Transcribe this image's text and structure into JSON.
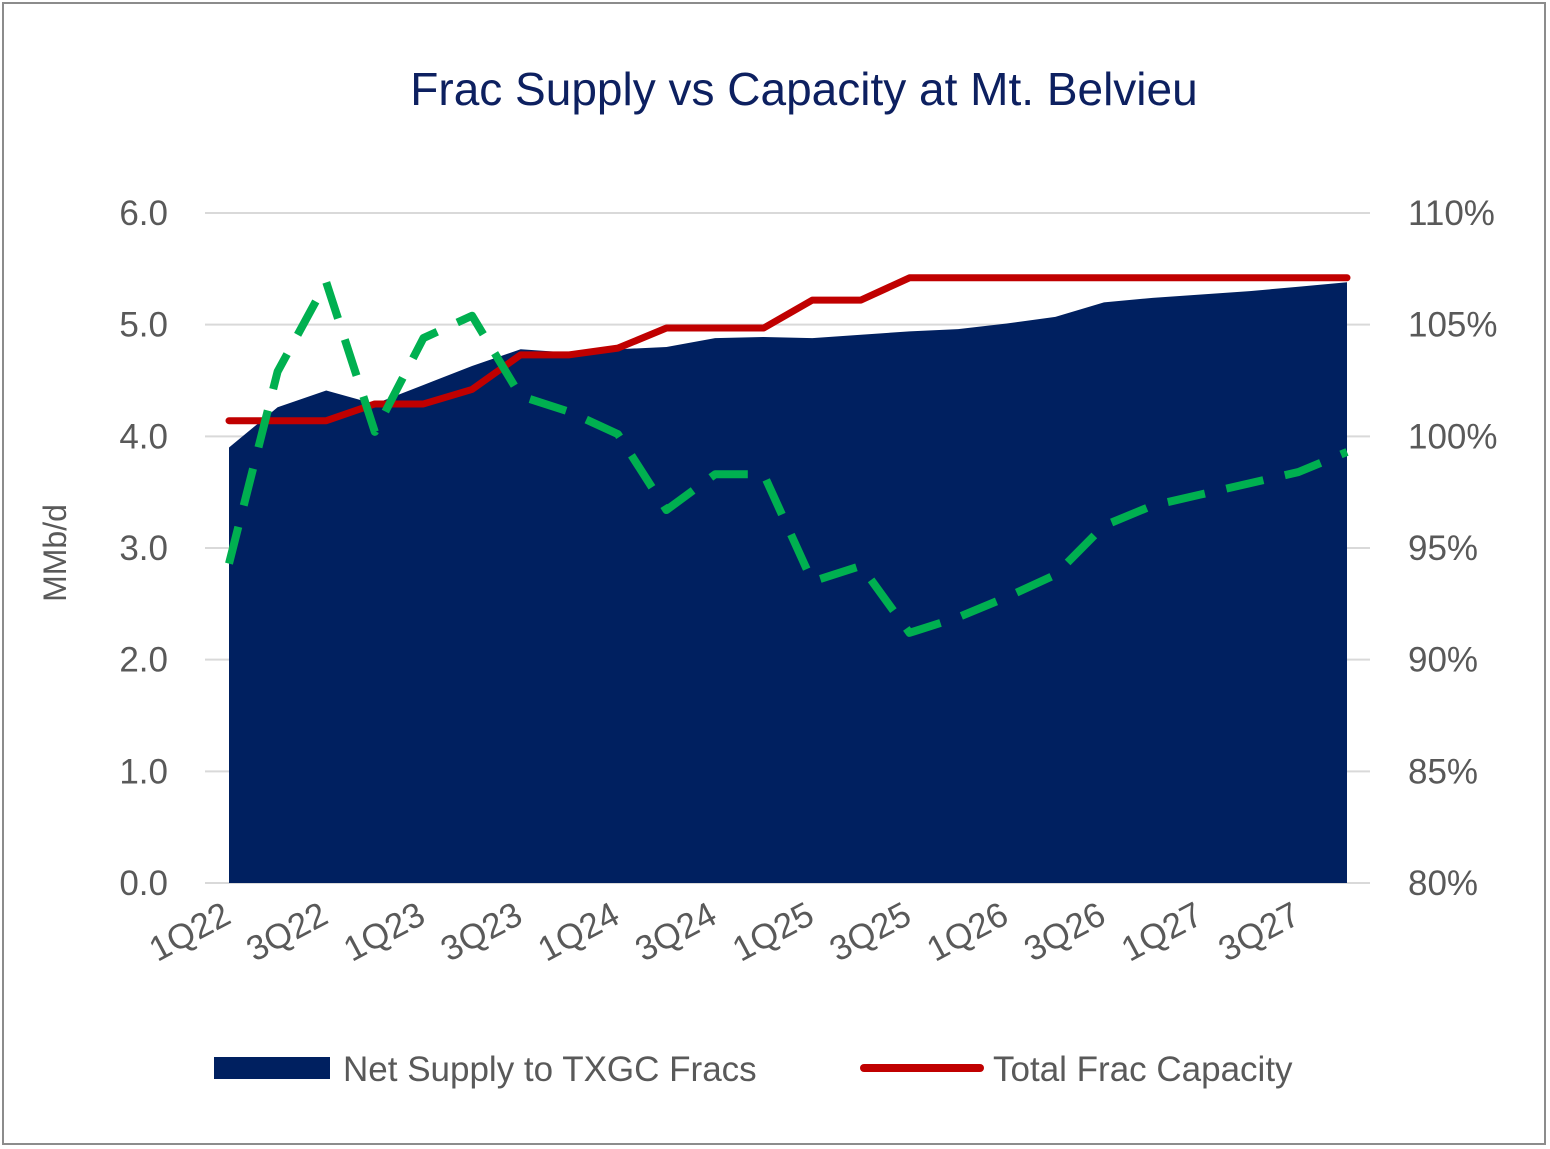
{
  "chart_data": {
    "type": "area",
    "title": "Frac Supply vs Capacity at Mt. Belvieu",
    "ylabel": "MMb/d",
    "ylim": [
      0,
      6
    ],
    "y_ticks": [
      "0.0",
      "1.0",
      "2.0",
      "3.0",
      "4.0",
      "5.0",
      "6.0"
    ],
    "y2lim": [
      80,
      110
    ],
    "y2_ticks": [
      "80%",
      "85%",
      "90%",
      "95%",
      "100%",
      "105%",
      "110%"
    ],
    "grid": true,
    "legend_position": "bottom",
    "categories": [
      "1Q22",
      "2Q22",
      "3Q22",
      "4Q22",
      "1Q23",
      "2Q23",
      "3Q23",
      "4Q23",
      "1Q24",
      "2Q24",
      "3Q24",
      "4Q24",
      "1Q25",
      "2Q25",
      "3Q25",
      "4Q25",
      "1Q26",
      "2Q26",
      "3Q26",
      "4Q26",
      "1Q27",
      "2Q27",
      "3Q27",
      "4Q27"
    ],
    "x_tick_labels": [
      "1Q22",
      "3Q22",
      "1Q23",
      "3Q23",
      "1Q24",
      "3Q24",
      "1Q25",
      "3Q25",
      "1Q26",
      "3Q26",
      "1Q27",
      "3Q27"
    ],
    "series": [
      {
        "name": "Net Supply to TXGC Fracs",
        "type": "area",
        "axis": "left",
        "color": "#002060",
        "values": [
          3.9,
          4.26,
          4.41,
          4.29,
          4.46,
          4.63,
          4.78,
          4.75,
          4.78,
          4.8,
          4.88,
          4.89,
          4.88,
          4.91,
          4.94,
          4.96,
          5.01,
          5.07,
          5.2,
          5.24,
          5.27,
          5.3,
          5.34,
          5.38
        ]
      },
      {
        "name": "Total Frac Capacity",
        "type": "line",
        "axis": "left",
        "color": "#c00000",
        "values": [
          4.14,
          4.14,
          4.14,
          4.29,
          4.29,
          4.42,
          4.73,
          4.73,
          4.79,
          4.97,
          4.97,
          4.97,
          5.22,
          5.22,
          5.42,
          5.42,
          5.42,
          5.42,
          5.42,
          5.42,
          5.42,
          5.42,
          5.42,
          5.42
        ]
      },
      {
        "type": "line",
        "axis": "right",
        "style": "dashed",
        "color": "#00b050",
        "values": [
          94.3,
          102.9,
          106.9,
          100.2,
          104.4,
          105.4,
          101.8,
          101.1,
          100.1,
          96.7,
          98.3,
          98.3,
          93.5,
          94.2,
          91.2,
          91.9,
          92.8,
          93.8,
          96.0,
          96.9,
          97.4,
          97.9,
          98.4,
          99.3
        ]
      }
    ]
  }
}
